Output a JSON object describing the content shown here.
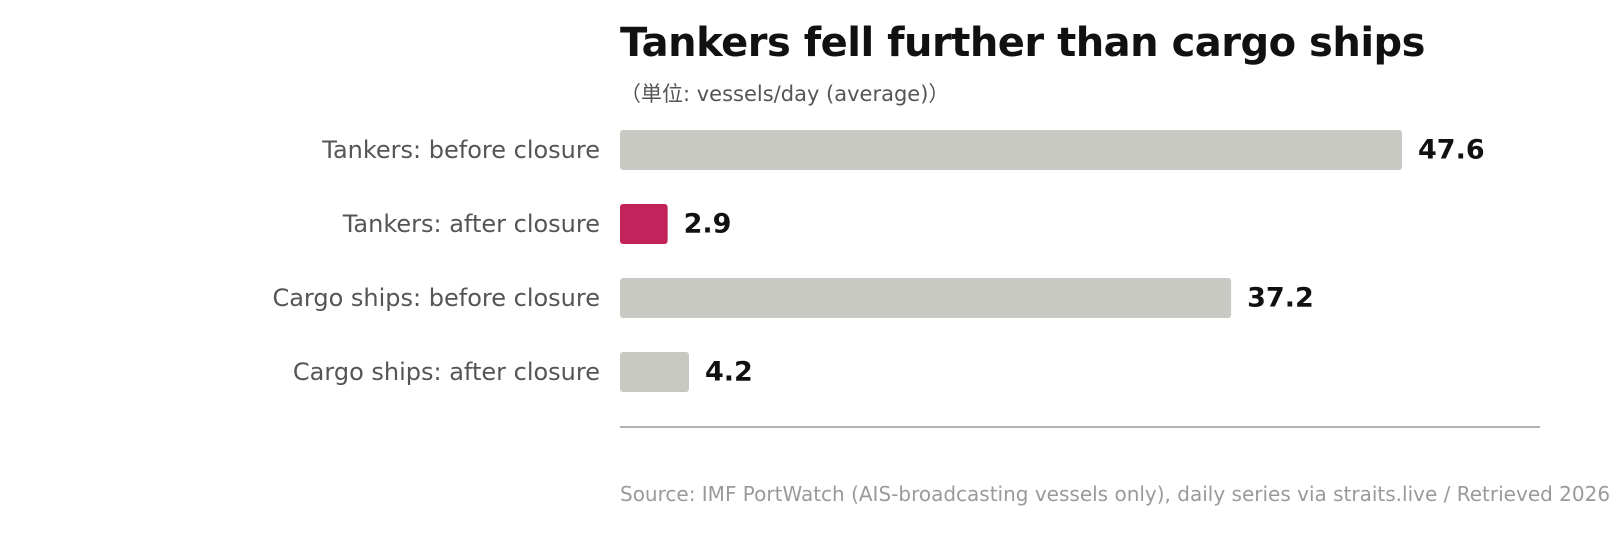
{
  "chart_data": {
    "type": "bar",
    "orientation": "horizontal",
    "title": "Tankers fell further than cargo ships",
    "subtitle": "（単位: vessels/day (average)）",
    "categories": [
      "Tankers: before closure",
      "Tankers: after closure",
      "Cargo ships: before closure",
      "Cargo ships: after closure"
    ],
    "values": [
      47.6,
      2.9,
      37.2,
      4.2
    ],
    "value_labels": [
      "47.6",
      "2.9",
      "37.2",
      "4.2"
    ],
    "bar_colors": [
      "#c9c9c4",
      "#c2235a",
      "#c9c9c4",
      "#c9c9c4"
    ],
    "highlight_color": "#c2235a",
    "base_color": "#c9c9c4",
    "xlim": [
      0,
      56
    ],
    "xlabel": "",
    "ylabel": "",
    "grid": false,
    "legend": "none",
    "source": "Source: IMF PortWatch (AIS-broadcasting vessels only), daily series via straits.live / Retrieved 2026"
  }
}
